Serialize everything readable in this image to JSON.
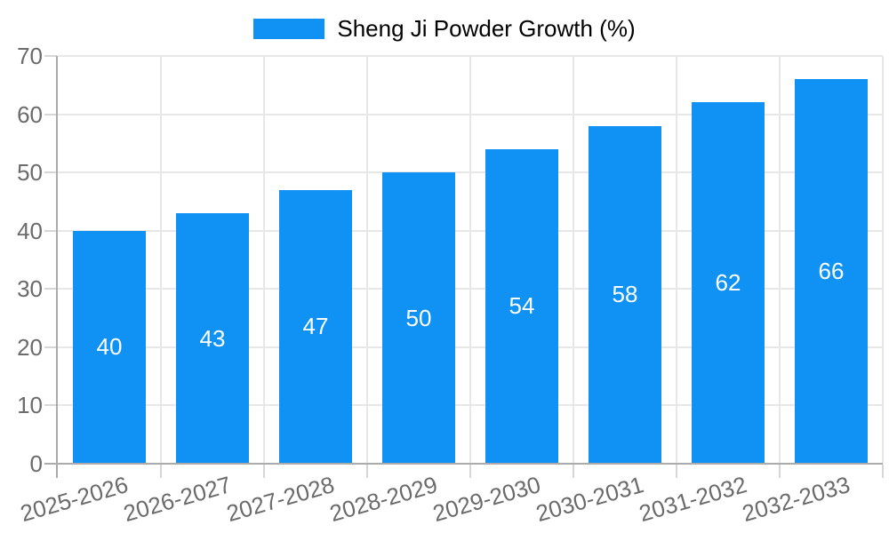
{
  "chart_data": {
    "type": "bar",
    "title": "Sheng Ji Powder Growth (%)",
    "legend": {
      "position": "top",
      "entries": [
        "Sheng Ji Powder Growth (%)"
      ]
    },
    "categories": [
      "2025-2026",
      "2026-2027",
      "2027-2028",
      "2028-2029",
      "2029-2030",
      "2030-2031",
      "2031-2032",
      "2032-2033"
    ],
    "values": [
      40,
      43,
      47,
      50,
      54,
      58,
      62,
      66
    ],
    "value_labels_shown": true,
    "xlabel": "",
    "ylabel": "",
    "ylim": [
      0,
      70
    ],
    "yticks": [
      0,
      10,
      20,
      30,
      40,
      50,
      60,
      70
    ],
    "grid": true,
    "colors": {
      "bar": "#0f92f4",
      "value_label": "#ffffff",
      "axis_text": "#6b6b6b",
      "grid_line": "#e7e7e7",
      "axis_line": "#ababab",
      "tick_mark": "#d6d6d6"
    }
  }
}
